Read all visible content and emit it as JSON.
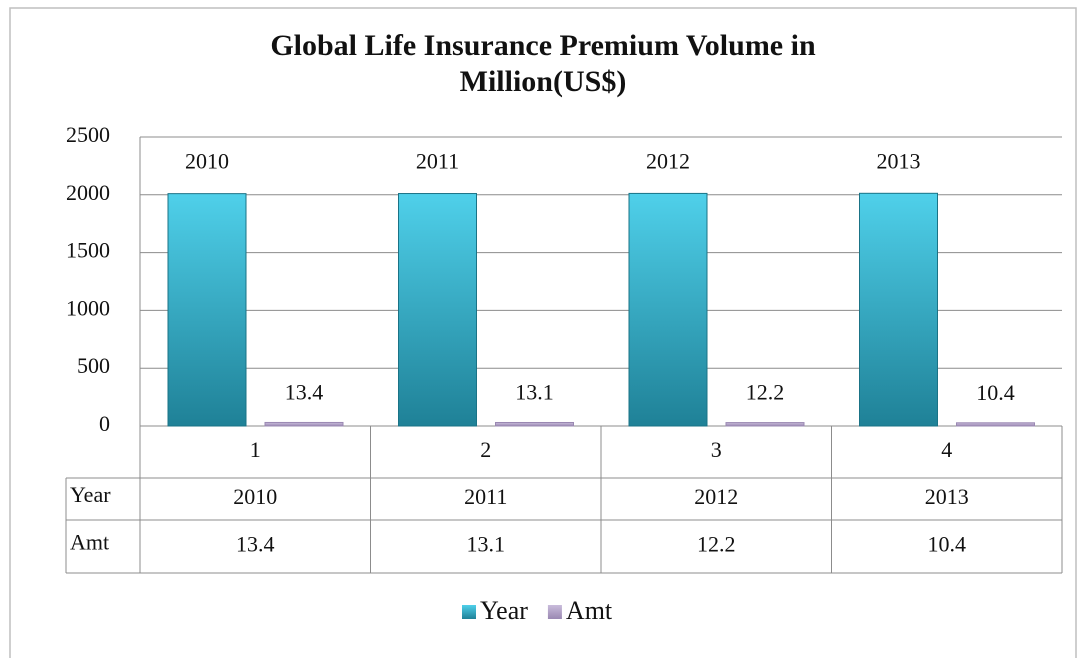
{
  "chart_data": {
    "type": "bar",
    "title": "Global Life Insurance Premium Volume in Million(US$)",
    "categories": [
      "1",
      "2",
      "3",
      "4"
    ],
    "series": [
      {
        "name": "Year",
        "color": "#35b6d2",
        "values": [
          2010,
          2011,
          2012,
          2013
        ]
      },
      {
        "name": "Amt",
        "color": "#b3a2c7",
        "values": [
          13.4,
          13.1,
          12.2,
          10.4
        ]
      }
    ],
    "ylim": [
      0,
      2500
    ],
    "yticks": [
      0,
      500,
      1000,
      1500,
      2000,
      2500
    ],
    "grid": true,
    "legend": "bottom"
  }
}
